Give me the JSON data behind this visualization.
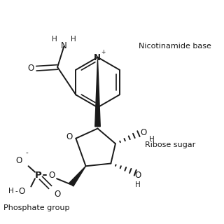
{
  "background": "#ffffff",
  "line_color": "#1a1a1a",
  "text_color": "#1a1a1a",
  "nicotinamide_label": "Nicotinamide base",
  "ribose_label": "Ribose sugar",
  "phosphate_label": "Phosphate group",
  "font_size": 7.5
}
